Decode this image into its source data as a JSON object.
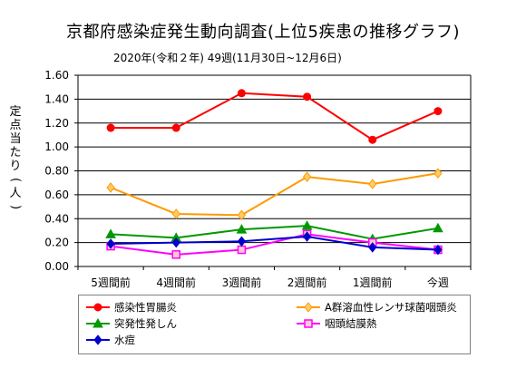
{
  "title": "京都府感染症発生動向調査(上位5疾患の推移グラフ)",
  "subtitle": "2020年(令和２年)  49週(11月30日~12月6日)",
  "chart_data": {
    "type": "line",
    "ylabel": "定点当たり(人)",
    "ylim": [
      0,
      1.6
    ],
    "yticks": [
      "0.00",
      "0.20",
      "0.40",
      "0.60",
      "0.80",
      "1.00",
      "1.20",
      "1.40",
      "1.60"
    ],
    "ytick_values": [
      0,
      0.2,
      0.4,
      0.6,
      0.8,
      1.0,
      1.2,
      1.4,
      1.6
    ],
    "categories": [
      "5週間前",
      "4週間前",
      "3週間前",
      "2週間前",
      "1週間前",
      "今週"
    ],
    "grid": true,
    "legend_position": "bottom",
    "series": [
      {
        "name": "感染性胃腸炎",
        "color": "#ff0000",
        "marker": "circle",
        "values": [
          1.16,
          1.16,
          1.45,
          1.42,
          1.06,
          1.3
        ]
      },
      {
        "name": "A群溶血性レンサ球菌咽頭炎",
        "color": "#ff9900",
        "marker": "diamond",
        "values": [
          0.66,
          0.44,
          0.43,
          0.75,
          0.69,
          0.78
        ]
      },
      {
        "name": "突発性発しん",
        "color": "#009900",
        "marker": "triangle",
        "values": [
          0.27,
          0.24,
          0.31,
          0.34,
          0.23,
          0.32
        ]
      },
      {
        "name": "咽頭結膜熱",
        "color": "#ff00ff",
        "marker": "square",
        "values": [
          0.17,
          0.1,
          0.14,
          0.27,
          0.2,
          0.14
        ]
      },
      {
        "name": "水痘",
        "color": "#0000cc",
        "marker": "diamond",
        "values": [
          0.19,
          0.2,
          0.21,
          0.25,
          0.16,
          0.14
        ]
      }
    ]
  }
}
